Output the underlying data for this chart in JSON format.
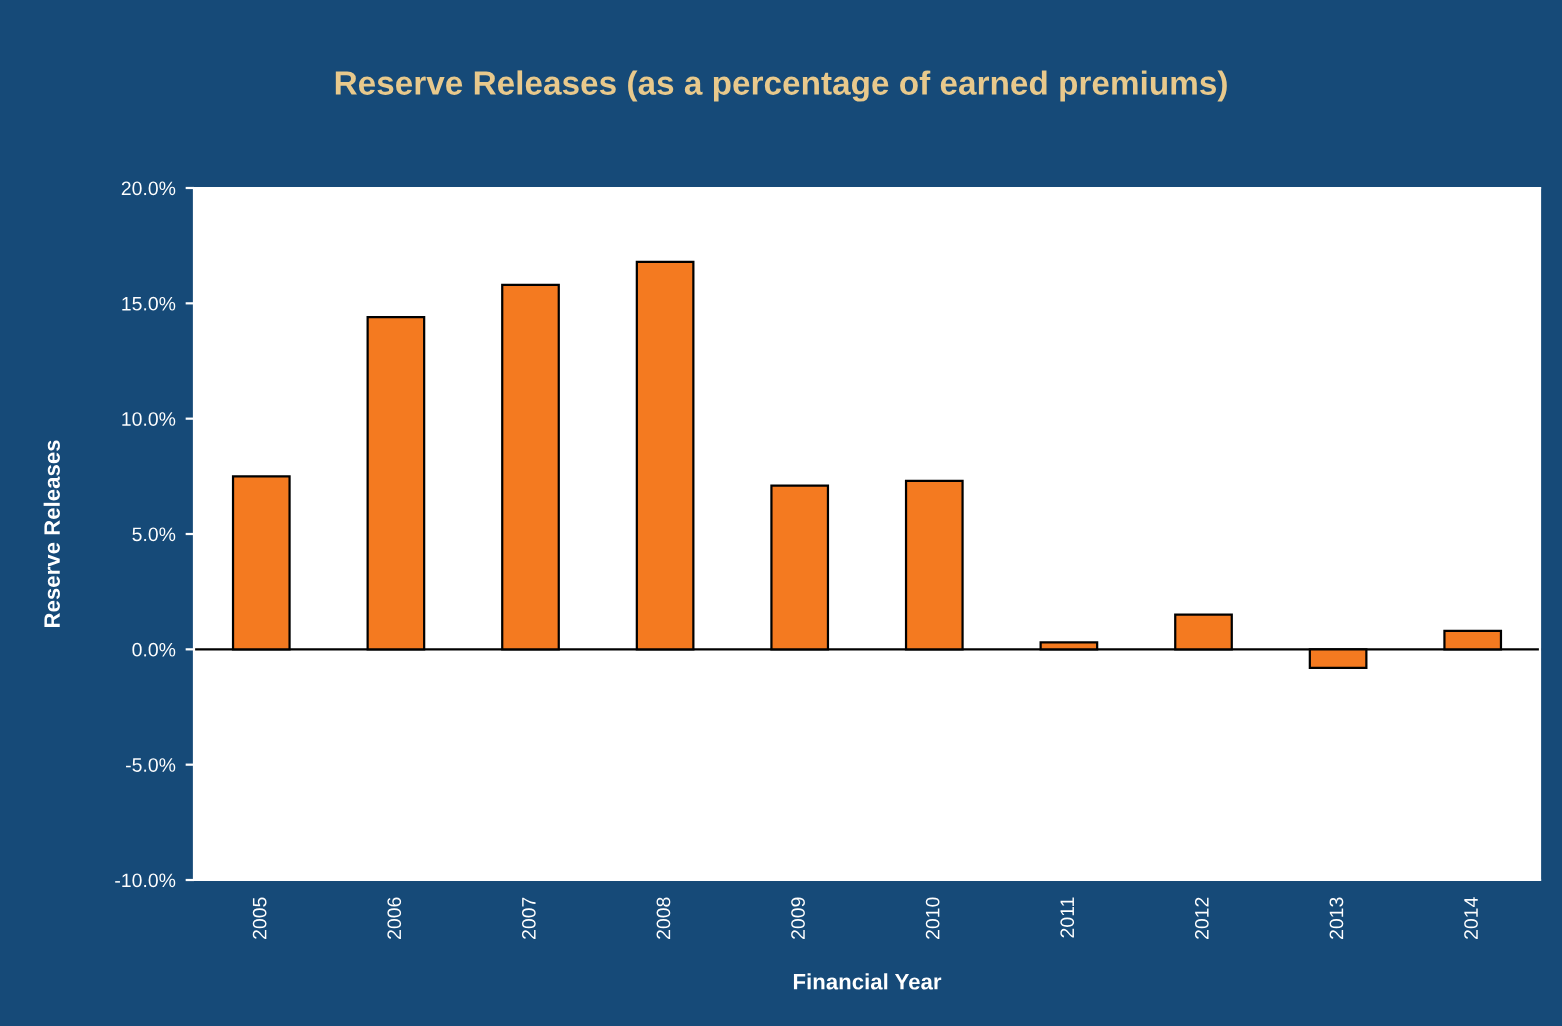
{
  "chart_data": {
    "type": "bar",
    "title": "Reserve Releases (as a percentage of earned premiums)",
    "xlabel": "Financial Year",
    "ylabel": "Reserve Releases",
    "categories": [
      "2005",
      "2006",
      "2007",
      "2008",
      "2009",
      "2010",
      "2011",
      "2012",
      "2013",
      "2014"
    ],
    "values": [
      7.5,
      14.4,
      15.8,
      16.8,
      7.1,
      7.3,
      0.3,
      1.5,
      -0.8,
      0.8
    ],
    "color": "#f47a20",
    "ylim": [
      -10,
      20
    ],
    "yticks": [
      {
        "value": -10,
        "label": "-10.0%"
      },
      {
        "value": -5,
        "label": "-5.0%"
      },
      {
        "value": 0,
        "label": "0.0%"
      },
      {
        "value": 5,
        "label": "5.0%"
      },
      {
        "value": 10,
        "label": "10.0%"
      },
      {
        "value": 15,
        "label": "15.0%"
      },
      {
        "value": 20,
        "label": "20.0%"
      }
    ],
    "legend": false
  }
}
